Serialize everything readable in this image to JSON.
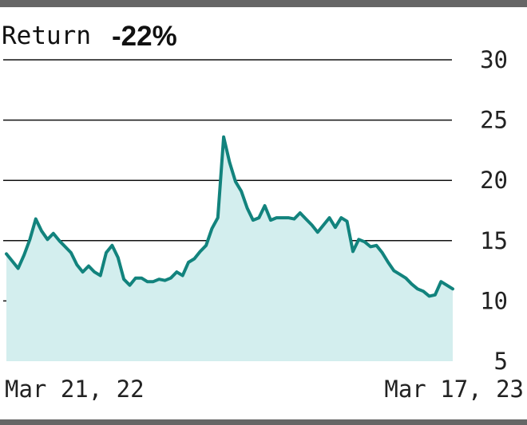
{
  "header": {
    "title_left": "Return",
    "title_right": "-22%"
  },
  "chart_data": {
    "type": "area",
    "title": "Return -22%",
    "xlabel": "",
    "ylabel": "",
    "ylim": [
      5,
      30
    ],
    "yticks": [
      30,
      25,
      20,
      15,
      10,
      5
    ],
    "x_tick_labels": [
      "Mar 21, 22",
      "Mar 17, 23"
    ],
    "grid": true,
    "colors": {
      "line": "#12837d",
      "fill": "#d3eeee",
      "top_bar": "#666666"
    },
    "series": [
      {
        "values": [
          13.9,
          13.3,
          12.7,
          13.8,
          15.1,
          16.8,
          15.8,
          15.1,
          15.6,
          15.0,
          14.5,
          14.0,
          13.0,
          12.4,
          12.9,
          12.4,
          12.1,
          14.0,
          14.6,
          13.6,
          11.8,
          11.3,
          11.9,
          11.9,
          11.6,
          11.6,
          11.8,
          11.7,
          11.9,
          12.4,
          12.1,
          13.2,
          13.5,
          14.1,
          14.6,
          16.0,
          16.9,
          23.6,
          21.5,
          19.9,
          19.1,
          17.7,
          16.7,
          16.9,
          17.9,
          16.7,
          16.9,
          16.9,
          16.9,
          16.8,
          17.3,
          16.8,
          16.3,
          15.7,
          16.3,
          16.9,
          16.1,
          16.9,
          16.6,
          14.1,
          15.1,
          14.9,
          14.5,
          14.6,
          14.0,
          13.2,
          12.5,
          12.2,
          11.9,
          11.4,
          11.0,
          10.8,
          10.4,
          10.5,
          11.6,
          11.3,
          11.0
        ]
      }
    ]
  }
}
